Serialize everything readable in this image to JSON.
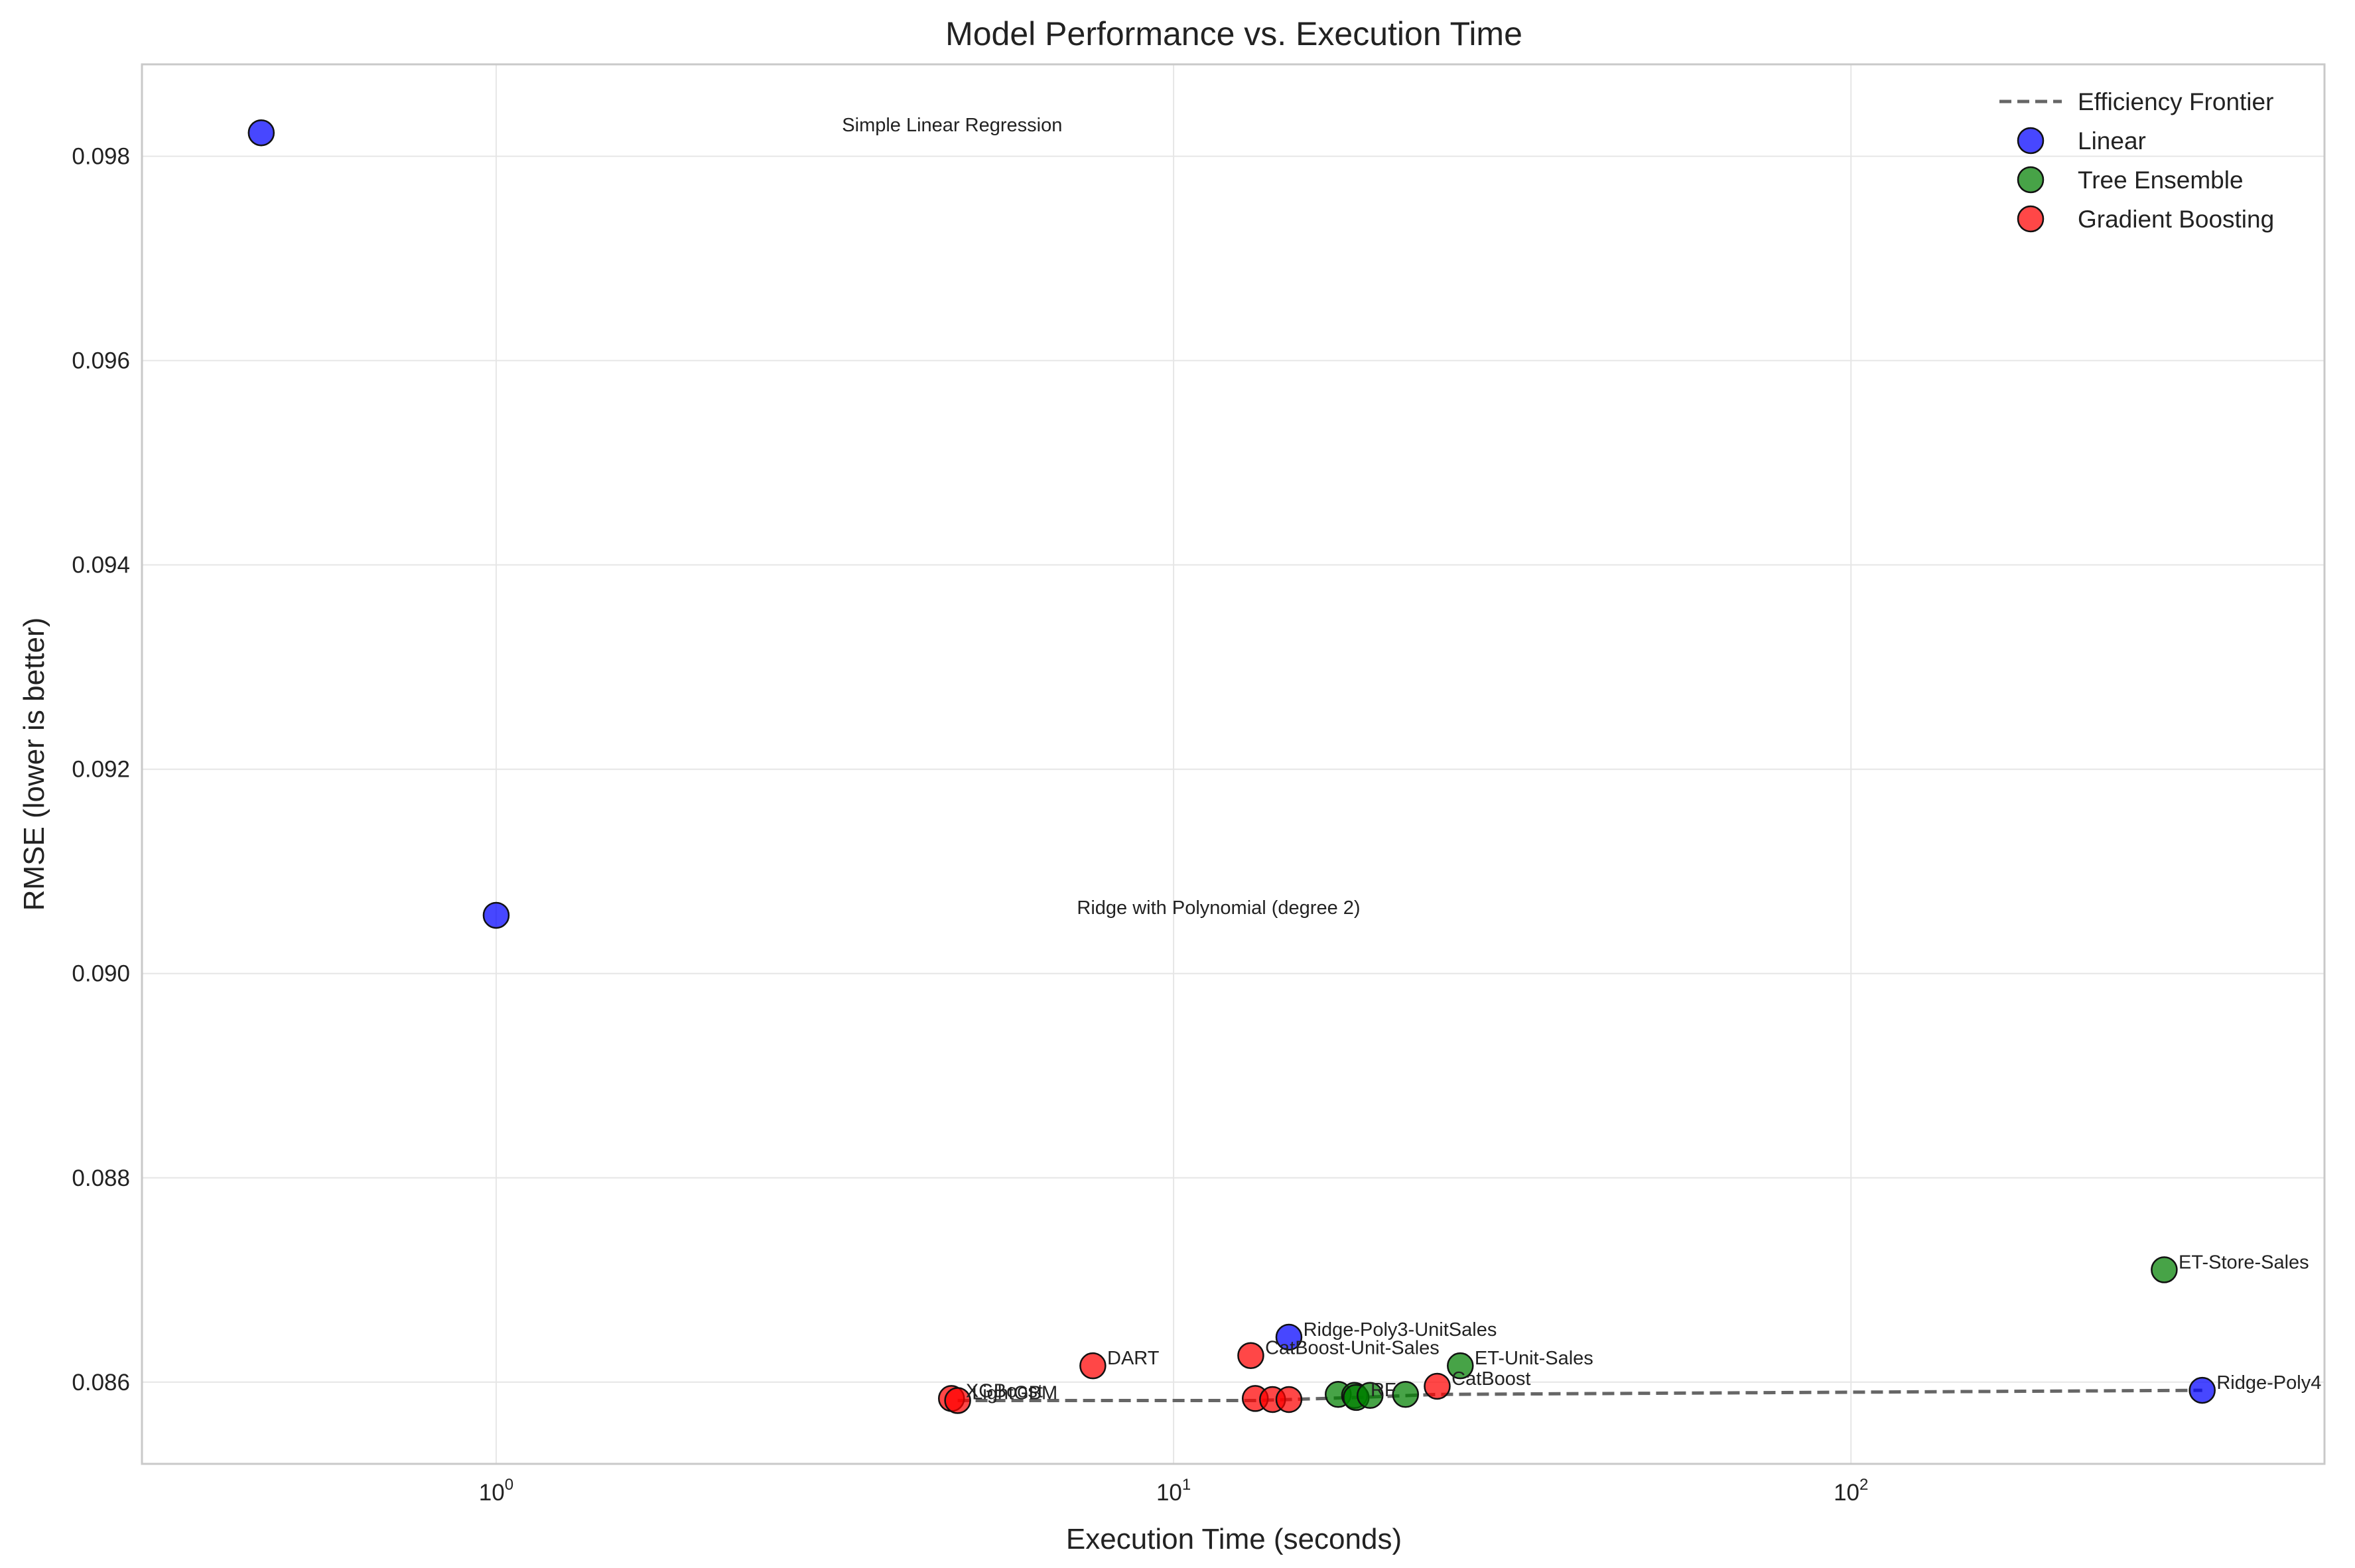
{
  "chart_data": {
    "type": "scatter",
    "title": "Model Performance vs. Execution Time",
    "xlabel": "Execution Time (seconds)",
    "ylabel": "RMSE (lower is better)",
    "xscale": "log",
    "xlim": [
      0.3,
      500
    ],
    "ylim": [
      0.0852,
      0.0989
    ],
    "xticks": [
      {
        "value": 1,
        "base": "10",
        "exp": "0"
      },
      {
        "value": 10,
        "base": "10",
        "exp": "1"
      },
      {
        "value": 100,
        "base": "10",
        "exp": "2"
      }
    ],
    "yticks": [
      0.086,
      0.088,
      0.09,
      0.092,
      0.094,
      0.096,
      0.098
    ],
    "grid": true,
    "legend_position": "top-right",
    "legend": [
      {
        "label": "Efficiency Frontier",
        "kind": "line"
      },
      {
        "label": "Linear",
        "kind": "marker",
        "color": "#0000ff"
      },
      {
        "label": "Tree Ensemble",
        "kind": "marker",
        "color": "#008000"
      },
      {
        "label": "Gradient Boosting",
        "kind": "marker",
        "color": "#ff0000"
      }
    ],
    "colors": {
      "Linear": "#0000ff",
      "Tree Ensemble": "#008000",
      "Gradient Boosting": "#ff0000",
      "frontier": "#666666"
    },
    "series": [
      {
        "name": "Linear",
        "points": [
          {
            "x": 0.45,
            "y": 0.09823,
            "label": "Simple Linear Regression",
            "label_dx": 7.2
          },
          {
            "x": 1.0,
            "y": 0.09057,
            "label": "Ridge with Polynomial (degree 2)",
            "label_dx": 7.2
          },
          {
            "x": 14.8,
            "y": 0.08644,
            "label": "Ridge-Poly3-UnitSales",
            "label_dx": 1.05
          },
          {
            "x": 330,
            "y": 0.08592,
            "label": "Ridge-Poly4",
            "label_dx": 1.05
          }
        ]
      },
      {
        "name": "Tree Ensemble",
        "points": [
          {
            "x": 290,
            "y": 0.0871,
            "label": "ET-Store-Sales",
            "label_dx": 1.05
          },
          {
            "x": 26.5,
            "y": 0.08616,
            "label": "ET-Unit-Sales",
            "label_dx": 1.05
          },
          {
            "x": 17.5,
            "y": 0.08588,
            "label": "",
            "label_dx": 1.05
          },
          {
            "x": 18.5,
            "y": 0.08587,
            "label": "",
            "label_dx": 1.05
          },
          {
            "x": 18.6,
            "y": 0.08585,
            "label": "RF",
            "label_dx": 1.05
          },
          {
            "x": 19.5,
            "y": 0.08587,
            "label": "",
            "label_dx": 1.05
          },
          {
            "x": 22.0,
            "y": 0.08588,
            "label": "",
            "label_dx": 1.05
          }
        ]
      },
      {
        "name": "Gradient Boosting",
        "points": [
          {
            "x": 4.7,
            "y": 0.08584,
            "label": "XGBoost",
            "label_dx": 1.05
          },
          {
            "x": 4.8,
            "y": 0.08582,
            "label": "LightGBM",
            "label_dx": 1.05
          },
          {
            "x": 7.6,
            "y": 0.08616,
            "label": "DART",
            "label_dx": 1.05
          },
          {
            "x": 13.0,
            "y": 0.08626,
            "label": "CatBoost-Unit-Sales",
            "label_dx": 1.05
          },
          {
            "x": 13.2,
            "y": 0.08584,
            "label": "",
            "label_dx": 1.05
          },
          {
            "x": 14.0,
            "y": 0.08583,
            "label": "",
            "label_dx": 1.05
          },
          {
            "x": 14.8,
            "y": 0.08583,
            "label": "",
            "label_dx": 1.05
          },
          {
            "x": 24.5,
            "y": 0.08596,
            "label": "CatBoost",
            "label_dx": 1.05
          }
        ]
      }
    ],
    "frontier": {
      "name": "Efficiency Frontier",
      "x": [
        4.8,
        13.2,
        18.6,
        24.5,
        330
      ],
      "y": [
        0.08582,
        0.08582,
        0.08585,
        0.08588,
        0.08592
      ]
    }
  }
}
